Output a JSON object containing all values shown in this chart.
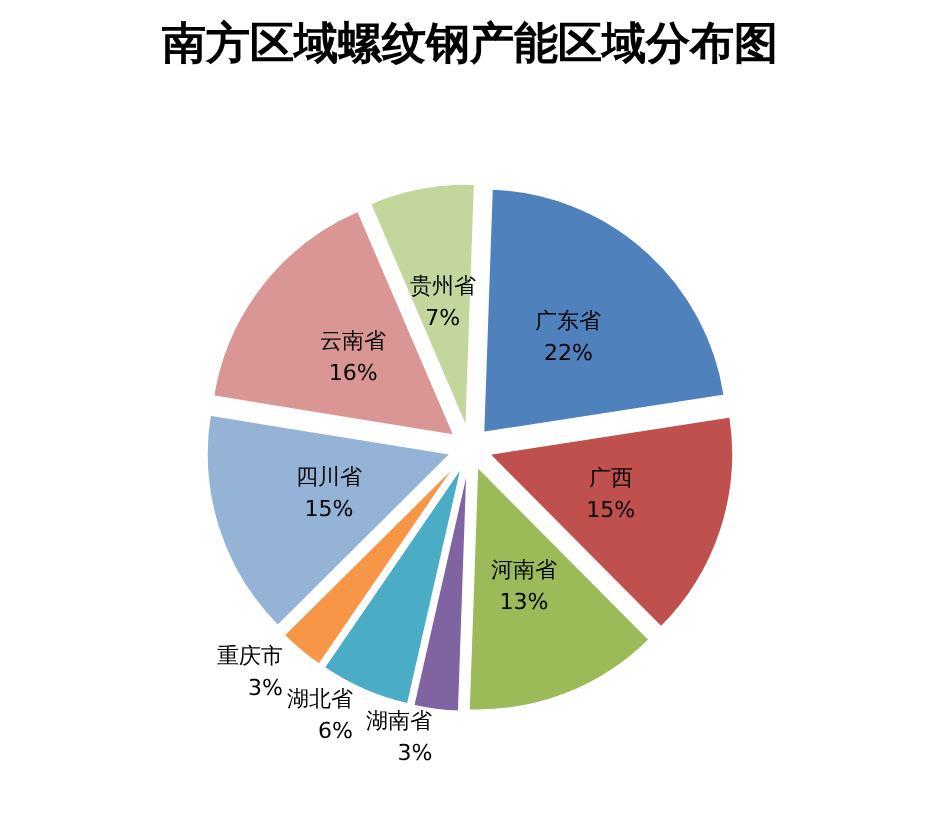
{
  "chart_data": {
    "type": "pie",
    "title": "南方区域螺纹钢产能区域分布图",
    "categories": [
      "广东省",
      "广西",
      "河南省",
      "湖南省",
      "湖北省",
      "重庆市",
      "四川省",
      "云南省",
      "贵州省"
    ],
    "values": [
      22,
      15,
      13,
      3,
      6,
      3,
      15,
      16,
      7
    ],
    "colors": [
      "#4f81bd",
      "#c0504d",
      "#9bbb59",
      "#8064a2",
      "#4bacc6",
      "#f79646",
      "#95b3d7",
      "#d99694",
      "#c3d69b"
    ],
    "value_labels": [
      "22%",
      "15%",
      "13%",
      "3%",
      "6%",
      "3%",
      "15%",
      "16%",
      "7%"
    ],
    "legend": false
  }
}
